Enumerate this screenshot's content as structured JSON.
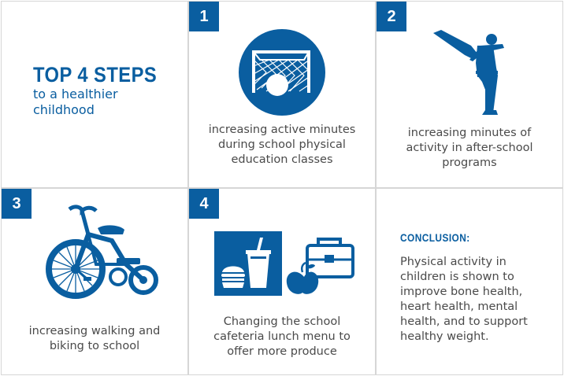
{
  "colors": {
    "accent": "#0a5ea0",
    "text": "#4a4a4a",
    "border": "#d6d6d6"
  },
  "intro": {
    "title": "TOP 4 STEPS",
    "subtitle_line1": "to a healthier",
    "subtitle_line2": "childhood"
  },
  "steps": [
    {
      "number": "1",
      "icon": "soccer-goal-icon",
      "lines": [
        "increasing active minutes",
        "during school physical",
        "education classes"
      ]
    },
    {
      "number": "2",
      "icon": "martial-arts-kick-icon",
      "lines": [
        "increasing minutes of",
        "activity in after-school",
        "programs"
      ]
    },
    {
      "number": "3",
      "icon": "tricycle-icon",
      "lines": [
        "increasing walking and",
        "biking to school"
      ]
    },
    {
      "number": "4",
      "icon": "lunch-food-icon",
      "lines": [
        "Changing the school",
        "cafeteria lunch menu to",
        "offer more produce"
      ]
    }
  ],
  "conclusion": {
    "title": "CONCLUSION:",
    "lines": [
      "Physical activity in",
      "children is shown to",
      "improve bone health,",
      "heart health, mental",
      "health, and to support",
      "healthy weight."
    ]
  }
}
